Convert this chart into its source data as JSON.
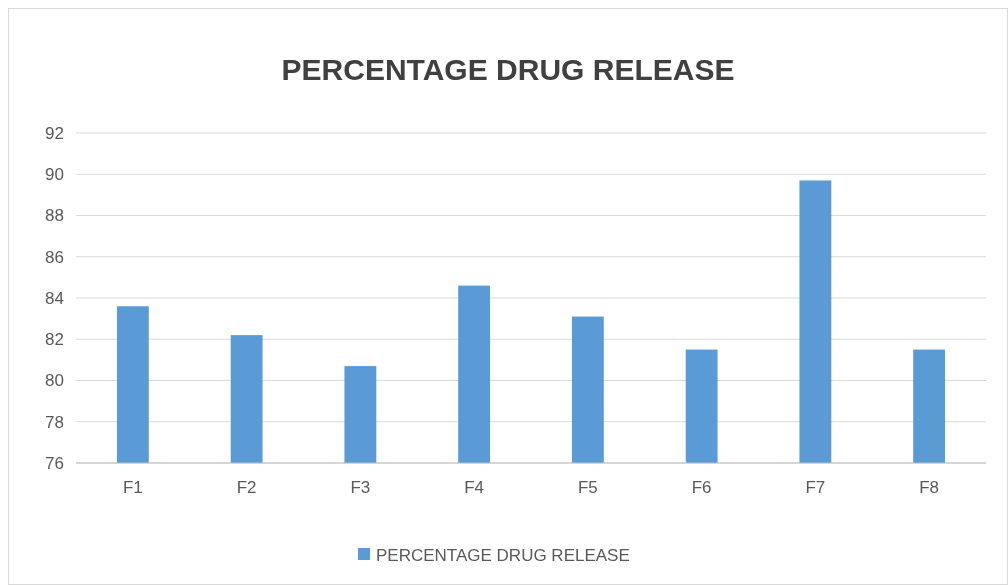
{
  "chart_data": {
    "type": "bar",
    "title": "PERCENTAGE DRUG RELEASE",
    "categories": [
      "F1",
      "F2",
      "F3",
      "F4",
      "F5",
      "F6",
      "F7",
      "F8"
    ],
    "series": [
      {
        "name": "PERCENTAGE DRUG RELEASE",
        "color": "#5b9bd5",
        "values": [
          83.6,
          82.2,
          80.7,
          84.6,
          83.1,
          81.5,
          89.7,
          81.5
        ]
      }
    ],
    "ylim": [
      76,
      92
    ],
    "yticks": [
      76,
      78,
      80,
      82,
      84,
      86,
      88,
      90,
      92
    ],
    "grid": "y",
    "legend": "bottom"
  }
}
